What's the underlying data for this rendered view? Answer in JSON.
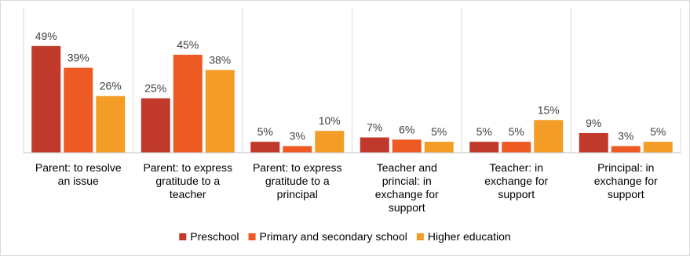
{
  "chart_data": {
    "type": "bar",
    "categories": [
      [
        "Parent: to resolve",
        "an issue"
      ],
      [
        "Parent: to express",
        "gratitude to a",
        "teacher"
      ],
      [
        "Parent: to express",
        "gratitude to a",
        "principal"
      ],
      [
        "Teacher and",
        "princial: in",
        "exchange for",
        "support"
      ],
      [
        "Teacher: in",
        "exchange for",
        "support"
      ],
      [
        "Principal: in",
        "exchange for",
        "support"
      ]
    ],
    "series": [
      {
        "name": "Preschool",
        "values": [
          49,
          25,
          5,
          7,
          5,
          9
        ],
        "color": "#c0392b"
      },
      {
        "name": "Primary and secondary school",
        "values": [
          39,
          45,
          3,
          6,
          5,
          3
        ],
        "color": "#ee5a24"
      },
      {
        "name": "Higher education",
        "values": [
          26,
          38,
          10,
          5,
          15,
          5
        ],
        "color": "#f39c26"
      }
    ],
    "value_suffix": "%",
    "ylim": [
      0,
      55
    ],
    "grid": false,
    "legend_position": "bottom",
    "category_separators": true
  }
}
